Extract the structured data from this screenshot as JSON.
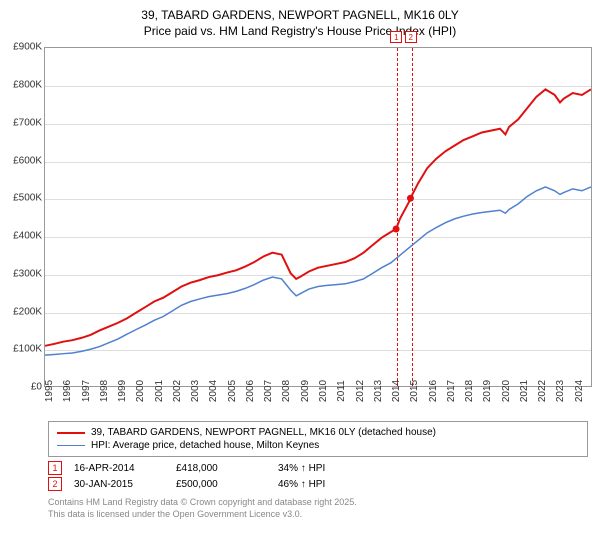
{
  "title_line1": "39, TABARD GARDENS, NEWPORT PAGNELL, MK16 0LY",
  "title_line2": "Price paid vs. HM Land Registry's House Price Index (HPI)",
  "chart": {
    "type": "line",
    "background_color": "#ffffff",
    "grid_color": "#dddddd",
    "border_color": "#999999",
    "ylim": [
      0,
      900
    ],
    "ytick_step": 100,
    "y_prefix": "£",
    "y_suffix": "K",
    "x_years": [
      1995,
      1996,
      1997,
      1998,
      1999,
      2000,
      2001,
      2002,
      2003,
      2004,
      2005,
      2006,
      2007,
      2008,
      2009,
      2010,
      2011,
      2012,
      2013,
      2014,
      2015,
      2016,
      2017,
      2018,
      2019,
      2020,
      2021,
      2022,
      2023,
      2024
    ],
    "x_min": 1995,
    "x_max": 2025,
    "series1": {
      "label": "39, TABARD GARDENS, NEWPORT PAGNELL, MK16 0LY (detached house)",
      "color": "#e01010",
      "width": 2,
      "points": [
        [
          1995,
          107
        ],
        [
          1995.5,
          112
        ],
        [
          1996,
          118
        ],
        [
          1996.5,
          122
        ],
        [
          1997,
          128
        ],
        [
          1997.5,
          136
        ],
        [
          1998,
          148
        ],
        [
          1998.5,
          158
        ],
        [
          1999,
          168
        ],
        [
          1999.5,
          180
        ],
        [
          2000,
          195
        ],
        [
          2000.5,
          210
        ],
        [
          2001,
          225
        ],
        [
          2001.5,
          235
        ],
        [
          2002,
          250
        ],
        [
          2002.5,
          265
        ],
        [
          2003,
          275
        ],
        [
          2003.5,
          282
        ],
        [
          2004,
          290
        ],
        [
          2004.5,
          295
        ],
        [
          2005,
          302
        ],
        [
          2005.5,
          308
        ],
        [
          2006,
          318
        ],
        [
          2006.5,
          330
        ],
        [
          2007,
          345
        ],
        [
          2007.5,
          355
        ],
        [
          2008,
          350
        ],
        [
          2008.2,
          330
        ],
        [
          2008.5,
          300
        ],
        [
          2008.8,
          285
        ],
        [
          2009,
          290
        ],
        [
          2009.5,
          305
        ],
        [
          2010,
          315
        ],
        [
          2010.5,
          320
        ],
        [
          2011,
          325
        ],
        [
          2011.5,
          330
        ],
        [
          2012,
          340
        ],
        [
          2012.5,
          355
        ],
        [
          2013,
          375
        ],
        [
          2013.5,
          395
        ],
        [
          2014,
          410
        ],
        [
          2014.29,
          418
        ],
        [
          2014.5,
          445
        ],
        [
          2015,
          490
        ],
        [
          2015.08,
          500
        ],
        [
          2015.5,
          540
        ],
        [
          2016,
          580
        ],
        [
          2016.5,
          605
        ],
        [
          2017,
          625
        ],
        [
          2017.5,
          640
        ],
        [
          2018,
          655
        ],
        [
          2018.5,
          665
        ],
        [
          2019,
          675
        ],
        [
          2019.5,
          680
        ],
        [
          2020,
          685
        ],
        [
          2020.3,
          670
        ],
        [
          2020.5,
          690
        ],
        [
          2021,
          710
        ],
        [
          2021.5,
          740
        ],
        [
          2022,
          770
        ],
        [
          2022.5,
          790
        ],
        [
          2023,
          775
        ],
        [
          2023.3,
          755
        ],
        [
          2023.5,
          765
        ],
        [
          2024,
          780
        ],
        [
          2024.5,
          775
        ],
        [
          2025,
          790
        ]
      ]
    },
    "series2": {
      "label": "HPI: Average price, detached house, Milton Keynes",
      "color": "#5080d0",
      "width": 1.5,
      "points": [
        [
          1995,
          82
        ],
        [
          1995.5,
          84
        ],
        [
          1996,
          86
        ],
        [
          1996.5,
          88
        ],
        [
          1997,
          92
        ],
        [
          1997.5,
          98
        ],
        [
          1998,
          105
        ],
        [
          1998.5,
          115
        ],
        [
          1999,
          125
        ],
        [
          1999.5,
          138
        ],
        [
          2000,
          150
        ],
        [
          2000.5,
          162
        ],
        [
          2001,
          175
        ],
        [
          2001.5,
          185
        ],
        [
          2002,
          200
        ],
        [
          2002.5,
          215
        ],
        [
          2003,
          225
        ],
        [
          2003.5,
          232
        ],
        [
          2004,
          238
        ],
        [
          2004.5,
          242
        ],
        [
          2005,
          246
        ],
        [
          2005.5,
          252
        ],
        [
          2006,
          260
        ],
        [
          2006.5,
          270
        ],
        [
          2007,
          282
        ],
        [
          2007.5,
          290
        ],
        [
          2008,
          285
        ],
        [
          2008.5,
          255
        ],
        [
          2008.8,
          240
        ],
        [
          2009,
          245
        ],
        [
          2009.5,
          258
        ],
        [
          2010,
          265
        ],
        [
          2010.5,
          268
        ],
        [
          2011,
          270
        ],
        [
          2011.5,
          272
        ],
        [
          2012,
          278
        ],
        [
          2012.5,
          285
        ],
        [
          2013,
          300
        ],
        [
          2013.5,
          315
        ],
        [
          2014,
          328
        ],
        [
          2014.5,
          348
        ],
        [
          2015,
          368
        ],
        [
          2015.5,
          388
        ],
        [
          2016,
          408
        ],
        [
          2016.5,
          422
        ],
        [
          2017,
          435
        ],
        [
          2017.5,
          445
        ],
        [
          2018,
          452
        ],
        [
          2018.5,
          458
        ],
        [
          2019,
          462
        ],
        [
          2019.5,
          465
        ],
        [
          2020,
          468
        ],
        [
          2020.3,
          460
        ],
        [
          2020.5,
          470
        ],
        [
          2021,
          485
        ],
        [
          2021.5,
          505
        ],
        [
          2022,
          520
        ],
        [
          2022.5,
          530
        ],
        [
          2023,
          520
        ],
        [
          2023.3,
          510
        ],
        [
          2023.5,
          515
        ],
        [
          2024,
          525
        ],
        [
          2024.5,
          520
        ],
        [
          2025,
          530
        ]
      ]
    },
    "sale_markers": [
      {
        "num": "1",
        "year": 2014.29,
        "value": 418,
        "color": "#e01010"
      },
      {
        "num": "2",
        "year": 2015.08,
        "value": 500,
        "color": "#e01010"
      }
    ]
  },
  "sales": [
    {
      "num": "1",
      "date": "16-APR-2014",
      "price": "£418,000",
      "pct": "34% ↑ HPI",
      "color": "#e01010"
    },
    {
      "num": "2",
      "date": "30-JAN-2015",
      "price": "£500,000",
      "pct": "46% ↑ HPI",
      "color": "#e01010"
    }
  ],
  "footer_line1": "Contains HM Land Registry data © Crown copyright and database right 2025.",
  "footer_line2": "This data is licensed under the Open Government Licence v3.0."
}
